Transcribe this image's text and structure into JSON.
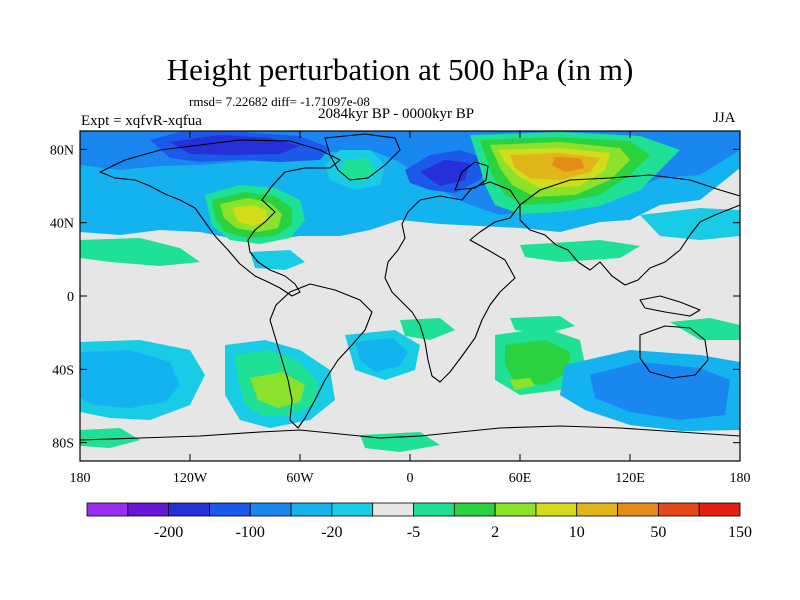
{
  "title": "Height perturbation at 500 hPa (in m)",
  "stats": "rmsd= 7.22682 diff= -1.71097e-08",
  "period": "2084kyr BP - 0000kyr BP",
  "experiment": "Expt = xqfvR-xqfua",
  "season": "JJA",
  "lat_ticks": [
    "80N",
    "40N",
    "0",
    "40S",
    "80S"
  ],
  "lon_ticks": [
    "180",
    "120W",
    "60W",
    "0",
    "60E",
    "120E",
    "180"
  ],
  "colorbar": {
    "labels": [
      "-200",
      "-100",
      "-20",
      "-5",
      "2",
      "10",
      "50",
      "150"
    ],
    "colors": [
      "#9b2ff0",
      "#6a16d6",
      "#2630d8",
      "#1b59ea",
      "#1a86f0",
      "#14b2ee",
      "#19cce6",
      "#e6e6e6",
      "#1fe196",
      "#2ad240",
      "#8ce12b",
      "#d2dc1a",
      "#e1b41a",
      "#e68b1a",
      "#e64a18",
      "#e41e12"
    ]
  },
  "colors": {
    "neutral": "#e6e6e6",
    "coastline": "#000000"
  }
}
